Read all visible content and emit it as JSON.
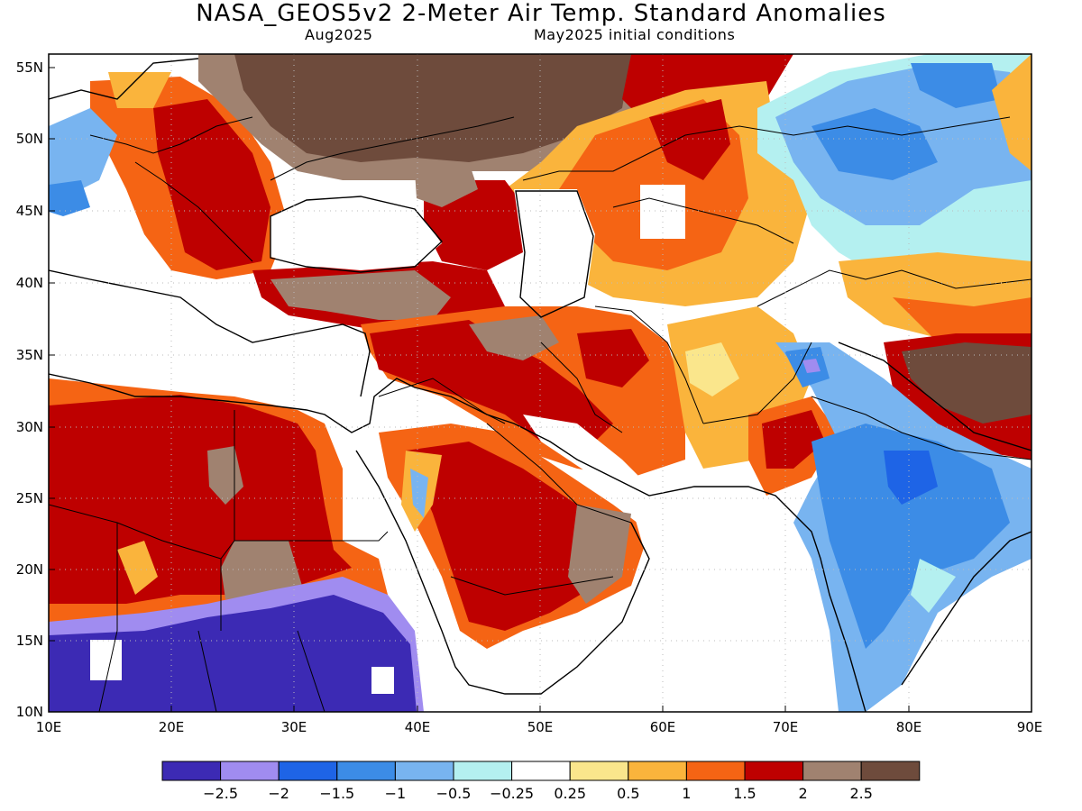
{
  "title": "NASA_GEOS5v2 2-Meter Air Temp. Standard Anomalies",
  "valid_month": "Aug2025",
  "initial_conditions": "May2025 initial conditions",
  "map": {
    "lon_labels": [
      "10E",
      "20E",
      "30E",
      "40E",
      "50E",
      "60E",
      "70E",
      "80E",
      "90E"
    ],
    "lat_labels": [
      "55N",
      "50N",
      "45N",
      "40N",
      "35N",
      "30N",
      "25N",
      "20N",
      "15N",
      "10N"
    ]
  },
  "colorbar": {
    "labels": [
      "-2.5",
      "-2",
      "-1.5",
      "-1",
      "-0.5",
      "-0.25",
      "0.25",
      "0.5",
      "1",
      "1.5",
      "2",
      "2.5"
    ],
    "colors": [
      "#3c2ab4",
      "#a08cf0",
      "#1e64e6",
      "#3c8ce6",
      "#78b4f0",
      "#b4f0f0",
      "#ffffff",
      "#fae68c",
      "#fab43c",
      "#f56414",
      "#be0000",
      "#a08270",
      "#6e4b3c"
    ]
  }
}
